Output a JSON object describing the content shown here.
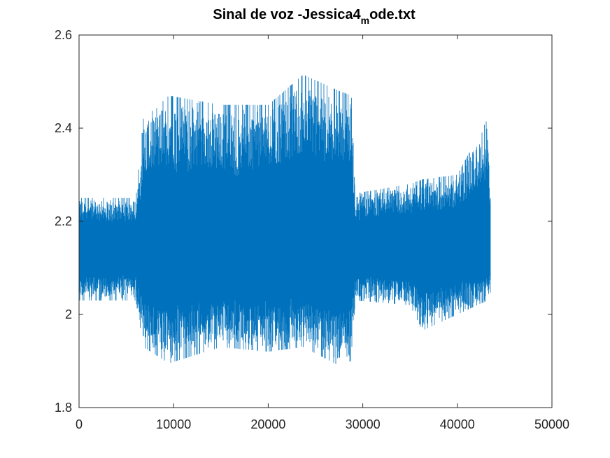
{
  "chart_data": {
    "type": "line",
    "title": {
      "main": "Sinal de voz -Jessica4",
      "subscript": "m",
      "suffix": "ode.txt"
    },
    "xlabel": "",
    "ylabel": "",
    "xlim": [
      0,
      50000
    ],
    "ylim": [
      1.8,
      2.6
    ],
    "x_ticks": [
      0,
      10000,
      20000,
      30000,
      40000,
      50000
    ],
    "x_tick_labels": [
      "0",
      "10000",
      "20000",
      "30000",
      "40000",
      "50000"
    ],
    "y_ticks": [
      1.8,
      2.0,
      2.2,
      2.4,
      2.6
    ],
    "y_tick_labels": [
      "1.8",
      "2",
      "2.2",
      "2.4",
      "2.6"
    ],
    "grid": false,
    "series_color": "#0072BD",
    "series": [
      {
        "x": [
          0,
          6000,
          6800,
          9500,
          15000,
          20000,
          23700,
          27500,
          28800,
          29200,
          35000,
          36300,
          40000,
          43200,
          43500
        ],
        "y_max": [
          2.25,
          2.25,
          2.42,
          2.47,
          2.45,
          2.45,
          2.515,
          2.48,
          2.47,
          2.26,
          2.28,
          2.29,
          2.3,
          2.42,
          2.26
        ],
        "y_min": [
          2.03,
          2.03,
          1.93,
          1.895,
          1.93,
          1.92,
          1.93,
          1.89,
          1.9,
          2.03,
          2.02,
          1.965,
          2.0,
          2.03,
          2.04
        ],
        "baseline": 2.14
      }
    ]
  }
}
